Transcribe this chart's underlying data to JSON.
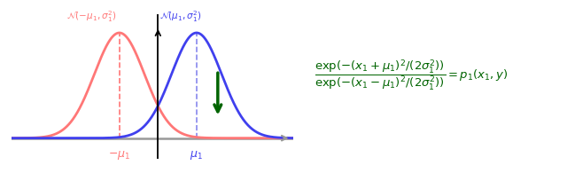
{
  "mu1": 1.0,
  "sigma1": 0.65,
  "x_range": [
    -3.8,
    3.5
  ],
  "pink_color": "#FF7777",
  "blue_color": "#4040EE",
  "green_color": "#006400",
  "gray_color": "#999999",
  "dashed_pink_color": "#FF7777",
  "dashed_blue_color": "#8888EE",
  "figsize": [
    6.4,
    1.95
  ],
  "dpi": 100
}
